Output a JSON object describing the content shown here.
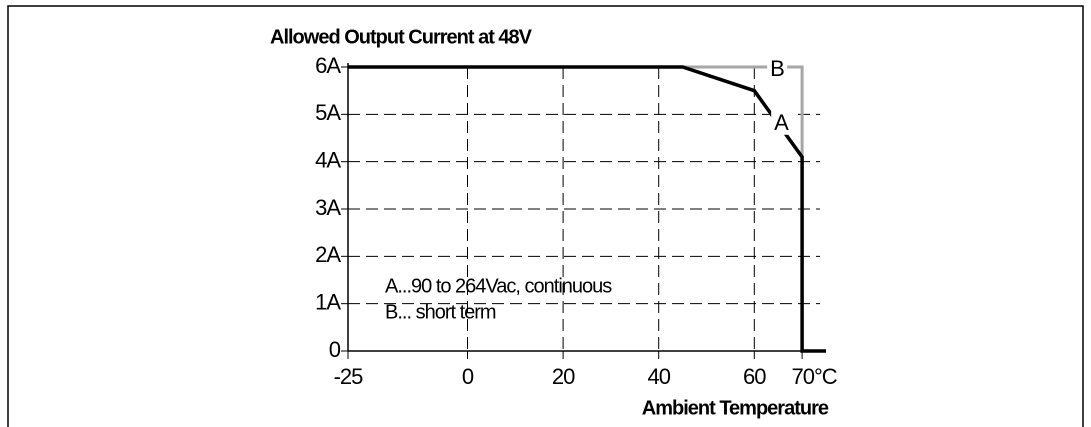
{
  "chart_data": {
    "type": "line",
    "title": "Allowed Output Current at 48V",
    "x_label": "Ambient Temperature",
    "xlim": [
      -25,
      75
    ],
    "ylim": [
      0,
      6
    ],
    "xticks": [
      -25,
      0,
      20,
      40,
      60,
      {
        "value": 70,
        "label": "70°C"
      }
    ],
    "yticks": [
      0,
      {
        "value": 1,
        "label": "1A"
      },
      {
        "value": 2,
        "label": "2A"
      },
      {
        "value": 3,
        "label": "3A"
      },
      {
        "value": 4,
        "label": "4A"
      },
      {
        "value": 5,
        "label": "5A"
      },
      {
        "value": 6,
        "label": "6A"
      }
    ],
    "grid": true,
    "series": [
      {
        "name": "A",
        "color": "#000000",
        "x": [
          -25,
          45,
          60,
          70,
          70,
          75
        ],
        "values": [
          6,
          6,
          5.5,
          4.1,
          0,
          0
        ]
      },
      {
        "name": "B",
        "color": "#a6a6a6",
        "x": [
          45,
          70,
          70
        ],
        "values": [
          6,
          6,
          4.1
        ]
      }
    ],
    "annotations": [
      "A...90 to 264Vac, continuous",
      "B... short term"
    ]
  }
}
